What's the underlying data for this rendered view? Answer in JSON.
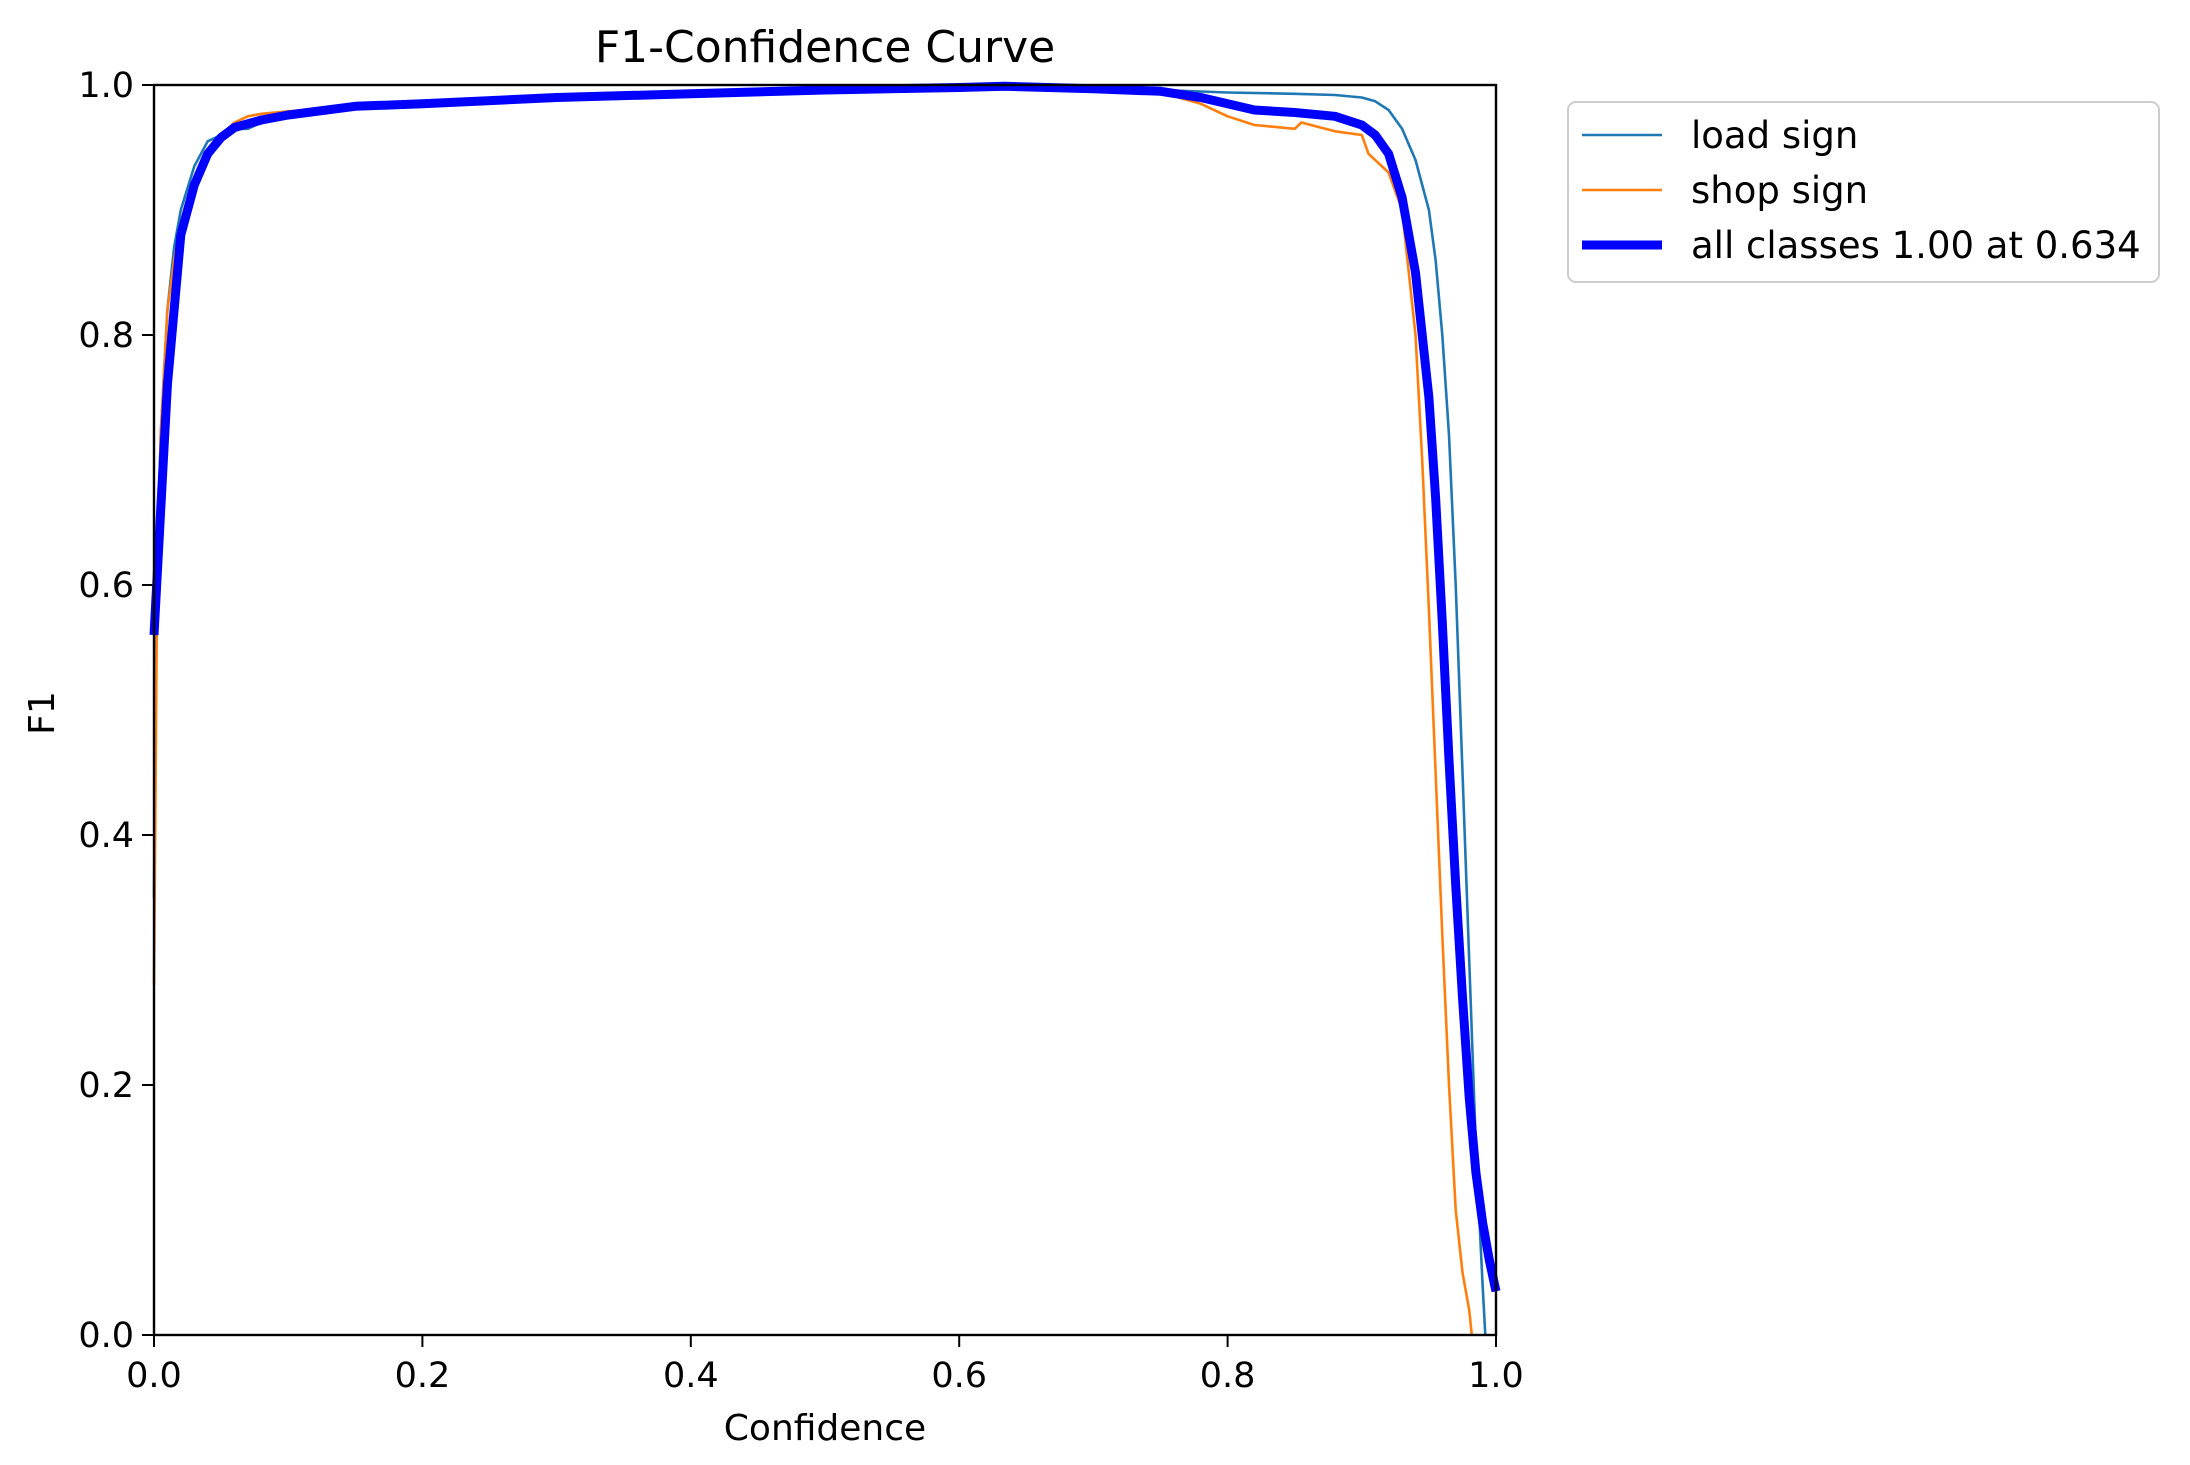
{
  "chart_data": {
    "type": "line",
    "title": "F1-Confidence Curve",
    "xlabel": "Confidence",
    "ylabel": "F1",
    "xlim": [
      0,
      1
    ],
    "ylim": [
      0,
      1
    ],
    "xticks": [
      "0.0",
      "0.2",
      "0.4",
      "0.6",
      "0.8",
      "1.0"
    ],
    "yticks": [
      "0.0",
      "0.2",
      "0.4",
      "0.6",
      "0.8",
      "1.0"
    ],
    "grid": false,
    "legend_position": "outside upper-right",
    "series": [
      {
        "name": "load sign",
        "color": "#1f77b4",
        "x": [
          0.0,
          0.002,
          0.005,
          0.01,
          0.015,
          0.02,
          0.03,
          0.04,
          0.05,
          0.06,
          0.07,
          0.08,
          0.09,
          0.1,
          0.15,
          0.2,
          0.3,
          0.4,
          0.5,
          0.6,
          0.65,
          0.7,
          0.75,
          0.8,
          0.85,
          0.88,
          0.9,
          0.91,
          0.92,
          0.93,
          0.94,
          0.95,
          0.955,
          0.96,
          0.965,
          0.97,
          0.975,
          0.98,
          0.985,
          0.99,
          0.992
        ],
        "y": [
          0.35,
          0.6,
          0.72,
          0.82,
          0.87,
          0.9,
          0.935,
          0.955,
          0.96,
          0.965,
          0.965,
          0.97,
          0.975,
          0.978,
          0.984,
          0.986,
          0.99,
          0.993,
          0.996,
          0.998,
          0.999,
          0.998,
          0.996,
          0.994,
          0.993,
          0.992,
          0.99,
          0.987,
          0.98,
          0.965,
          0.94,
          0.9,
          0.86,
          0.8,
          0.72,
          0.6,
          0.45,
          0.3,
          0.15,
          0.04,
          0.0
        ]
      },
      {
        "name": "shop sign",
        "color": "#ff7f0e",
        "x": [
          0.0,
          0.002,
          0.005,
          0.01,
          0.015,
          0.02,
          0.03,
          0.04,
          0.05,
          0.06,
          0.07,
          0.08,
          0.1,
          0.15,
          0.2,
          0.3,
          0.4,
          0.5,
          0.6,
          0.65,
          0.7,
          0.75,
          0.78,
          0.8,
          0.82,
          0.85,
          0.855,
          0.88,
          0.9,
          0.905,
          0.92,
          0.93,
          0.94,
          0.945,
          0.95,
          0.955,
          0.96,
          0.965,
          0.97,
          0.975,
          0.98,
          0.982
        ],
        "y": [
          0.28,
          0.56,
          0.72,
          0.82,
          0.86,
          0.89,
          0.925,
          0.945,
          0.96,
          0.97,
          0.975,
          0.977,
          0.979,
          0.983,
          0.985,
          0.989,
          0.992,
          0.995,
          0.997,
          0.998,
          0.997,
          0.994,
          0.985,
          0.975,
          0.968,
          0.965,
          0.97,
          0.963,
          0.96,
          0.945,
          0.93,
          0.9,
          0.8,
          0.7,
          0.58,
          0.45,
          0.32,
          0.2,
          0.1,
          0.05,
          0.02,
          0.0
        ]
      },
      {
        "name": "all classes 1.00 at 0.634",
        "color": "#0000ff",
        "x": [
          0.0,
          0.005,
          0.01,
          0.02,
          0.03,
          0.04,
          0.05,
          0.06,
          0.08,
          0.1,
          0.15,
          0.2,
          0.3,
          0.4,
          0.5,
          0.6,
          0.634,
          0.7,
          0.75,
          0.78,
          0.8,
          0.82,
          0.85,
          0.88,
          0.9,
          0.91,
          0.92,
          0.93,
          0.94,
          0.95,
          0.955,
          0.96,
          0.965,
          0.97,
          0.975,
          0.98,
          0.985,
          0.99,
          0.995,
          1.0
        ],
        "y": [
          0.56,
          0.66,
          0.76,
          0.88,
          0.92,
          0.945,
          0.958,
          0.966,
          0.972,
          0.976,
          0.983,
          0.985,
          0.99,
          0.993,
          0.996,
          0.998,
          0.999,
          0.997,
          0.995,
          0.99,
          0.985,
          0.98,
          0.978,
          0.975,
          0.968,
          0.96,
          0.945,
          0.91,
          0.85,
          0.75,
          0.67,
          0.57,
          0.46,
          0.36,
          0.27,
          0.19,
          0.13,
          0.09,
          0.06,
          0.035
        ]
      }
    ]
  }
}
